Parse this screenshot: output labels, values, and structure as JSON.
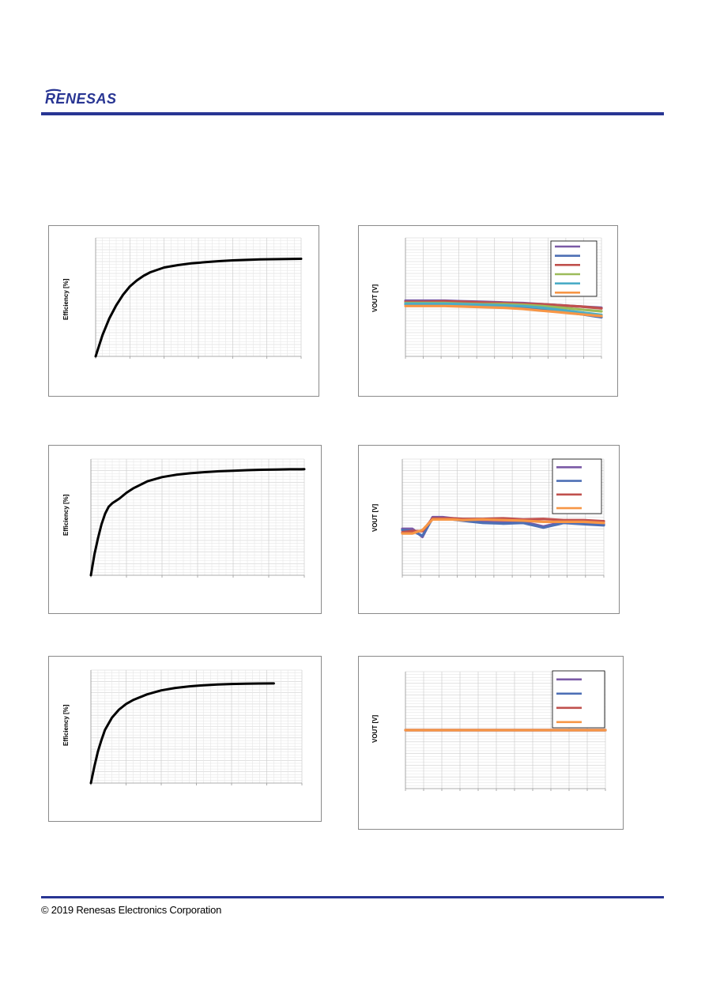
{
  "header": {
    "logo_text": "RENESAS",
    "brand_color": "#283593"
  },
  "footer": {
    "copyright": "© 2019 Renesas Electronics Corporation"
  },
  "chart_data": [
    {
      "type": "line",
      "ylabel": "Efficiency [%]",
      "x": [
        0,
        1,
        2,
        3,
        4,
        5,
        6,
        7,
        8,
        10,
        12,
        14,
        16,
        18,
        20,
        22,
        24,
        26,
        28,
        30
      ],
      "series": [
        {
          "values": [
            0,
            18,
            32,
            43,
            52,
            59,
            64,
            68,
            71,
            75,
            77,
            78.5,
            79.5,
            80.3,
            81,
            81.4,
            81.8,
            82,
            82.2,
            82.3
          ],
          "color": "#000000"
        }
      ],
      "xlim": [
        0,
        30
      ],
      "ylim": [
        0,
        100
      ]
    },
    {
      "type": "line",
      "ylabel": "VOUT [V]",
      "x": [
        0,
        1,
        2,
        3,
        4,
        5,
        6,
        7,
        8,
        9,
        10
      ],
      "series": [
        {
          "values": [
            47,
            47,
            47,
            46.5,
            46,
            45.5,
            45,
            44,
            43,
            42,
            41
          ],
          "color": "#7b5aa6"
        },
        {
          "values": [
            44,
            44,
            44,
            43.5,
            43,
            42.5,
            42,
            40,
            37.5,
            35.5,
            33
          ],
          "color": "#4d6fb5"
        },
        {
          "values": [
            46,
            46,
            46.5,
            46,
            45.5,
            45,
            44.5,
            44,
            43,
            42,
            40.5
          ],
          "color": "#c0504d"
        },
        {
          "values": [
            45,
            45,
            45,
            44.5,
            44,
            44,
            43.5,
            42.5,
            41,
            39.5,
            38
          ],
          "color": "#9bbb59"
        },
        {
          "values": [
            44.5,
            44.5,
            44.5,
            44,
            43.5,
            43,
            42.5,
            41,
            39,
            37,
            35
          ],
          "color": "#4bacc6"
        },
        {
          "values": [
            42.5,
            42.5,
            42.5,
            42,
            41.5,
            41,
            40,
            38.5,
            37,
            35.5,
            34
          ],
          "color": "#f79646"
        }
      ],
      "xlim": [
        0,
        10
      ],
      "ylim": [
        0,
        100
      ]
    },
    {
      "type": "line",
      "ylabel": "Efficiency [%]",
      "x": [
        0,
        0.5,
        1,
        1.5,
        2,
        2.5,
        3,
        4,
        5,
        6,
        8,
        10,
        12,
        14,
        16,
        18,
        20,
        22,
        24,
        26,
        28,
        30
      ],
      "series": [
        {
          "values": [
            0,
            18,
            32,
            44,
            53,
            59,
            62,
            66,
            71,
            75,
            81,
            84.5,
            86.5,
            87.8,
            88.8,
            89.5,
            90,
            90.5,
            90.8,
            91,
            91.2,
            91.3
          ],
          "color": "#000000"
        }
      ],
      "xlim": [
        0,
        30
      ],
      "ylim": [
        0,
        100
      ]
    },
    {
      "type": "line",
      "ylabel": "VOUT [V]",
      "x": [
        0,
        0.5,
        1,
        1.5,
        2,
        2.5,
        3,
        4,
        5,
        6,
        7,
        8,
        9,
        10
      ],
      "series": [
        {
          "values": [
            40,
            40,
            33,
            50,
            50,
            49,
            48,
            46,
            45.5,
            46,
            42,
            46,
            45,
            44
          ],
          "color": "#7b5aa6"
        },
        {
          "values": [
            39,
            38,
            34,
            49,
            49,
            48,
            47,
            45,
            44.5,
            45,
            41,
            45,
            44,
            43
          ],
          "color": "#4d6fb5"
        },
        {
          "values": [
            37,
            38,
            38,
            49,
            49,
            49,
            48.5,
            48.5,
            49,
            48,
            48.5,
            47.5,
            47.5,
            46.5
          ],
          "color": "#c0504d"
        },
        {
          "values": [
            36,
            36,
            39,
            48,
            48,
            48,
            47.5,
            48,
            47.5,
            47,
            46,
            46,
            46,
            45
          ],
          "color": "#f79646"
        }
      ],
      "xlim": [
        0,
        10
      ],
      "ylim": [
        0,
        100
      ]
    },
    {
      "type": "line",
      "ylabel": "Efficiency [%]",
      "x": [
        0,
        0.5,
        1,
        1.5,
        2,
        3,
        4,
        5,
        6,
        8,
        10,
        12,
        14,
        16,
        18,
        20,
        22,
        24,
        26
      ],
      "series": [
        {
          "values": [
            0,
            15,
            28,
            38,
            47,
            58,
            65,
            70,
            73.5,
            78.5,
            82,
            84.2,
            85.6,
            86.6,
            87.2,
            87.7,
            88,
            88.1,
            88.2
          ],
          "color": "#000000"
        }
      ],
      "xlim": [
        0,
        30
      ],
      "ylim": [
        0,
        100
      ]
    },
    {
      "type": "line",
      "ylabel": "VOUT [V]",
      "x": [
        0,
        1,
        2,
        3,
        4,
        5,
        6,
        7,
        8,
        9,
        10
      ],
      "series": [
        {
          "values": [
            50,
            50,
            50,
            50,
            50,
            50,
            50,
            50,
            50,
            50,
            50
          ],
          "color": "#7b5aa6"
        },
        {
          "values": [
            50,
            50,
            50,
            50,
            50,
            50,
            50,
            50,
            50,
            50,
            50
          ],
          "color": "#4d6fb5"
        },
        {
          "values": [
            50,
            50,
            50,
            50,
            50,
            50,
            50,
            50,
            50,
            50,
            50
          ],
          "color": "#c0504d"
        },
        {
          "values": [
            50,
            50,
            50,
            50,
            50,
            50,
            50,
            50,
            50,
            50,
            50
          ],
          "color": "#f79646"
        }
      ],
      "xlim": [
        0,
        10
      ],
      "ylim": [
        0,
        100
      ]
    }
  ]
}
